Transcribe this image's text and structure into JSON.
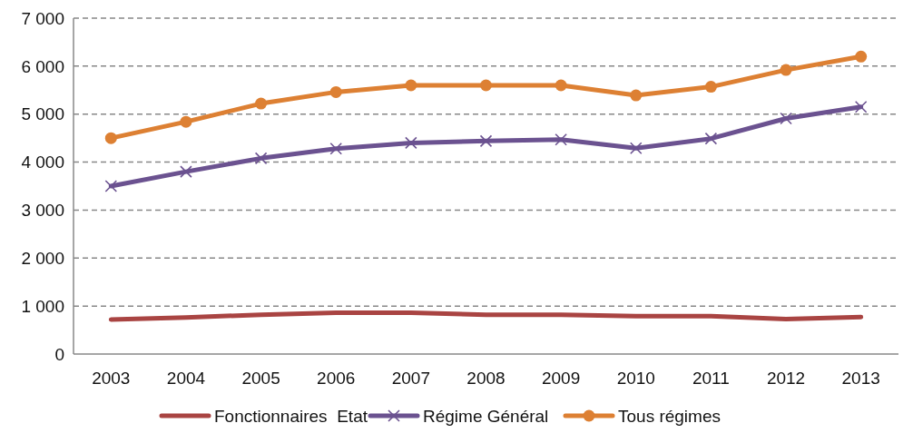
{
  "chart_data": {
    "type": "line",
    "categories": [
      "2003",
      "2004",
      "2005",
      "2006",
      "2007",
      "2008",
      "2009",
      "2010",
      "2011",
      "2012",
      "2013"
    ],
    "series": [
      {
        "name": "Fonctionnaires  Etat",
        "color": "#a94442",
        "marker": "none",
        "values": [
          720,
          760,
          820,
          860,
          860,
          820,
          820,
          790,
          790,
          730,
          770
        ]
      },
      {
        "name": "Régime Général",
        "color": "#6b5290",
        "marker": "cross",
        "values": [
          3500,
          3800,
          4080,
          4280,
          4400,
          4440,
          4470,
          4290,
          4490,
          4910,
          5150
        ]
      },
      {
        "name": "Tous régimes",
        "color": "#dd8033",
        "marker": "circle",
        "values": [
          4500,
          4840,
          5220,
          5460,
          5600,
          5600,
          5600,
          5390,
          5570,
          5920,
          6200
        ]
      }
    ],
    "ylim": [
      0,
      7000
    ],
    "yticks": [
      {
        "value": 0,
        "label": "0"
      },
      {
        "value": 1000,
        "label": "1 000"
      },
      {
        "value": 2000,
        "label": "2 000"
      },
      {
        "value": 3000,
        "label": "3 000"
      },
      {
        "value": 4000,
        "label": "4 000"
      },
      {
        "value": 5000,
        "label": "5 000"
      },
      {
        "value": 6000,
        "label": "6 000"
      },
      {
        "value": 7000,
        "label": "7 000"
      }
    ],
    "grid": "y",
    "legend": "bottom",
    "line_style": "solid"
  }
}
